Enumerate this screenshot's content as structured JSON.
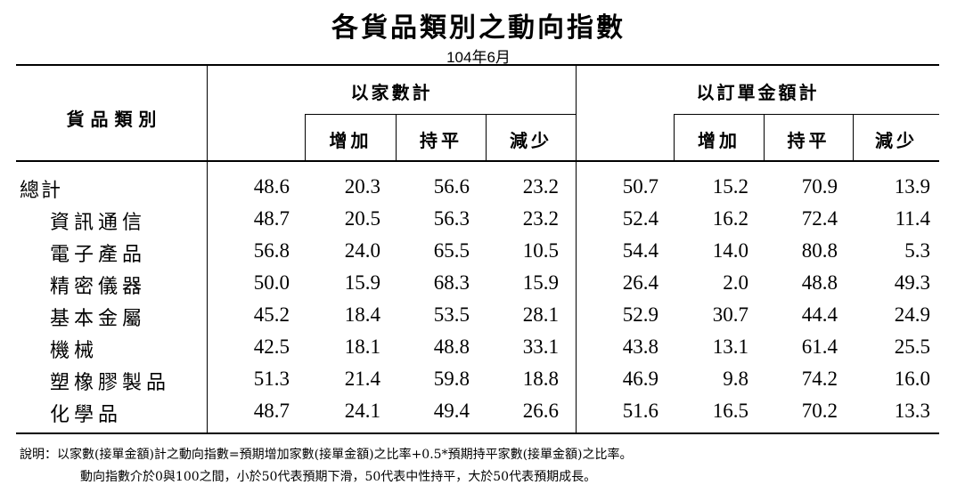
{
  "title": "各貨品類別之動向指數",
  "subtitle": "104年6月",
  "headers": {
    "category": "貨 品 類 別",
    "group1": "以家數計",
    "group2": "以訂單金額計",
    "sub": [
      "增加",
      "持平",
      "減少"
    ]
  },
  "rows": [
    {
      "label": "總計",
      "values": [
        "48.6",
        "20.3",
        "56.6",
        "23.2",
        "50.7",
        "15.2",
        "70.9",
        "13.9"
      ]
    },
    {
      "label": "資訊通信",
      "values": [
        "48.7",
        "20.5",
        "56.3",
        "23.2",
        "52.4",
        "16.2",
        "72.4",
        "11.4"
      ]
    },
    {
      "label": "電子產品",
      "values": [
        "56.8",
        "24.0",
        "65.5",
        "10.5",
        "54.4",
        "14.0",
        "80.8",
        "5.3"
      ]
    },
    {
      "label": "精密儀器",
      "values": [
        "50.0",
        "15.9",
        "68.3",
        "15.9",
        "26.4",
        "2.0",
        "48.8",
        "49.3"
      ]
    },
    {
      "label": "基本金屬",
      "values": [
        "45.2",
        "18.4",
        "53.5",
        "28.1",
        "52.9",
        "30.7",
        "44.4",
        "24.9"
      ]
    },
    {
      "label": "機械",
      "values": [
        "42.5",
        "18.1",
        "48.8",
        "33.1",
        "43.8",
        "13.1",
        "61.4",
        "25.5"
      ]
    },
    {
      "label": "塑橡膠製品",
      "values": [
        "51.3",
        "21.4",
        "59.8",
        "18.8",
        "46.9",
        "9.8",
        "74.2",
        "16.0"
      ]
    },
    {
      "label": "化學品",
      "values": [
        "48.7",
        "24.1",
        "49.4",
        "26.6",
        "51.6",
        "16.5",
        "70.2",
        "13.3"
      ]
    }
  ],
  "notes": {
    "line1": "說明：以家數(接單金額)計之動向指數=預期增加家數(接單金額)之比率+0.5*預期持平家數(接單金額)之比率。",
    "line2": "動向指數介於0與100之間，小於50代表預期下滑，50代表中性持平，大於50代表預期成長。"
  }
}
